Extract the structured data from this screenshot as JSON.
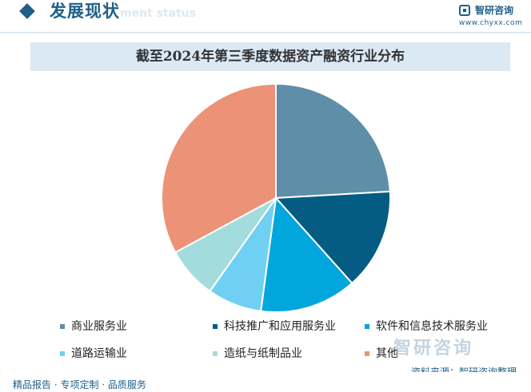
{
  "header": {
    "section_title": "发展现状",
    "section_subtitle": "ment status",
    "logo_name": "智研咨询",
    "logo_url": "www.chyxx.com"
  },
  "chart_data": {
    "type": "pie",
    "title": "截至2024年第三季度数据资产融资行业分布",
    "start_angle_deg": 0,
    "direction": "clockwise",
    "slices": [
      {
        "name": "商业服务业",
        "value": 24.1,
        "color": "#5f8fa8"
      },
      {
        "name": "科技推广和应用服务业",
        "value": 14.3,
        "color": "#045c82"
      },
      {
        "name": "软件和信息技术服务业",
        "value": 13.7,
        "color": "#00a6dc"
      },
      {
        "name": "道路运输业",
        "value": 7.7,
        "color": "#70d0f4"
      },
      {
        "name": "造纸与纸制品业",
        "value": 7.3,
        "color": "#a3dcdc"
      },
      {
        "name": "其他",
        "value": 32.9,
        "color": "#ec9276"
      }
    ]
  },
  "watermark": {
    "brand": "智研咨询"
  },
  "source": "资料来源：智研咨询整理",
  "footer": "精品报告 · 专项定制 · 品质服务"
}
